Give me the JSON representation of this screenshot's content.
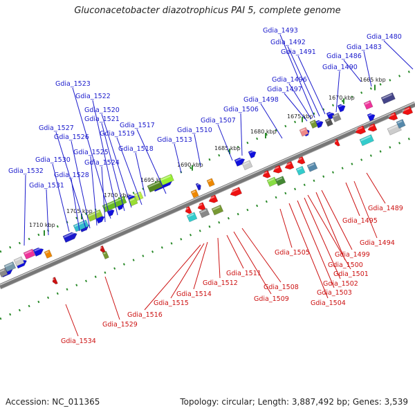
{
  "title": "Gluconacetobacter diazotrophicus PAI 5, complete genome",
  "footer": {
    "accession_label": "Accession: NC_011365",
    "stats_label": "Topology: circular; Length: 3,887,492 bp; Genes: 3,539"
  },
  "colors": {
    "forward_label": "#1a1acc",
    "reverse_label": "#cc1111",
    "backbone": "#777777",
    "tick": "#2a8a2a"
  },
  "scale_ticks": [
    "1665 kbp",
    "1670 kbp",
    "1675 kbp",
    "1680 kbp",
    "1685 kbp",
    "1690 kbp",
    "1695 kbp",
    "1700 kbp",
    "1705 kbp",
    "1710 kbp"
  ],
  "forward_labels": [
    "Gdia_1480",
    "Gdia_1483",
    "Gdia_1486",
    "Gdia_1490",
    "Gdia_1491",
    "Gdia_1492",
    "Gdia_1493",
    "Gdia_1496",
    "Gdia_1497",
    "Gdia_1498",
    "Gdia_1506",
    "Gdia_1507",
    "Gdia_1510",
    "Gdia_1513",
    "Gdia_1517",
    "Gdia_1518",
    "Gdia_1519",
    "Gdia_1520",
    "Gdia_1521",
    "Gdia_1522",
    "Gdia_1523",
    "Gdia_1524",
    "Gdia_1525",
    "Gdia_1526",
    "Gdia_1527",
    "Gdia_1528",
    "Gdia_1530",
    "Gdia_1531",
    "Gdia_1532"
  ],
  "reverse_labels": [
    "Gdia_1489",
    "Gdia_1494",
    "Gdia_1495",
    "Gdia_1499",
    "Gdia_1500",
    "Gdia_1501",
    "Gdia_1502",
    "Gdia_1503",
    "Gdia_1504",
    "Gdia_1505",
    "Gdia_1508",
    "Gdia_1509",
    "Gdia_1511",
    "Gdia_1512",
    "Gdia_1514",
    "Gdia_1515",
    "Gdia_1516",
    "Gdia_1529",
    "Gdia_1534"
  ]
}
